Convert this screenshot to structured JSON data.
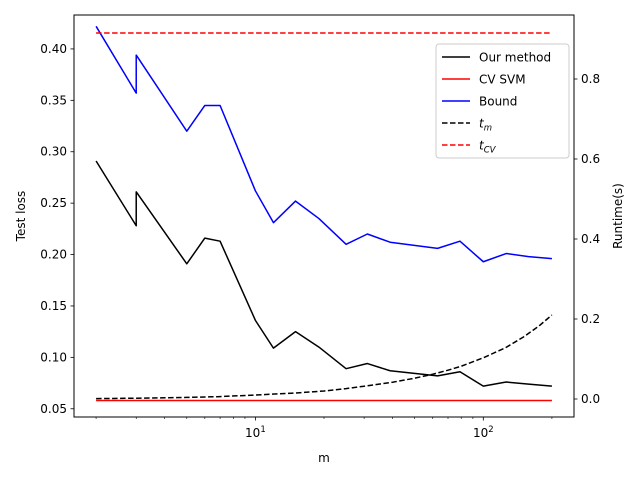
{
  "chart_data": {
    "type": "line",
    "x_scale": "log",
    "xlabel": "m",
    "ylabel_left": "Test loss",
    "ylabel_right": "Runtime(s)",
    "xlim": [
      1.6,
      250
    ],
    "ylim_left": [
      0.042,
      0.433
    ],
    "ylim_right": [
      -0.045,
      0.96
    ],
    "x_ticks": [
      {
        "value": 10,
        "base": "10",
        "exp": "1"
      },
      {
        "value": 100,
        "base": "10",
        "exp": "2"
      }
    ],
    "y_ticks_left": [
      0.05,
      0.1,
      0.15,
      0.2,
      0.25,
      0.3,
      0.35,
      0.4
    ],
    "y_tick_labels_left": [
      "0.05",
      "0.10",
      "0.15",
      "0.20",
      "0.25",
      "0.30",
      "0.35",
      "0.40"
    ],
    "y_ticks_right": [
      0.0,
      0.2,
      0.4,
      0.6,
      0.8
    ],
    "y_tick_labels_right": [
      "0.0",
      "0.2",
      "0.4",
      "0.6",
      "0.8"
    ],
    "grid": false,
    "legend_position": "top-right",
    "series": [
      {
        "name": "Our method",
        "axis": "left",
        "color": "#000000",
        "dash": "solid",
        "x": [
          2,
          3,
          3,
          5,
          6,
          7,
          10,
          12,
          15,
          19,
          25,
          31,
          39,
          63,
          79,
          100,
          126,
          158,
          200
        ],
        "y": [
          0.291,
          0.228,
          0.261,
          0.191,
          0.216,
          0.213,
          0.136,
          0.109,
          0.125,
          0.11,
          0.089,
          0.094,
          0.087,
          0.082,
          0.086,
          0.072,
          0.076,
          0.074,
          0.072
        ]
      },
      {
        "name": "CV SVM",
        "axis": "left",
        "color": "#ff0000",
        "dash": "solid",
        "x": [
          2,
          200
        ],
        "y": [
          0.058,
          0.058
        ]
      },
      {
        "name": "Bound",
        "axis": "left",
        "color": "#0000ff",
        "dash": "solid",
        "x": [
          2,
          3,
          3,
          5,
          6,
          7,
          10,
          12,
          15,
          19,
          25,
          31,
          39,
          63,
          79,
          100,
          126,
          158,
          200
        ],
        "y": [
          0.422,
          0.357,
          0.394,
          0.32,
          0.345,
          0.345,
          0.262,
          0.231,
          0.252,
          0.235,
          0.21,
          0.22,
          0.212,
          0.206,
          0.213,
          0.193,
          0.201,
          0.198,
          0.196
        ]
      },
      {
        "name": "t",
        "name_sub": "m",
        "axis": "right",
        "color": "#000000",
        "dash": "dashed",
        "x": [
          2,
          3,
          5,
          7,
          10,
          15,
          20,
          25,
          30,
          40,
          50,
          60,
          70,
          80,
          100,
          125,
          150,
          175,
          200
        ],
        "y": [
          0.001,
          0.002,
          0.004,
          0.006,
          0.01,
          0.015,
          0.02,
          0.026,
          0.032,
          0.042,
          0.052,
          0.062,
          0.072,
          0.082,
          0.103,
          0.128,
          0.155,
          0.182,
          0.21
        ]
      },
      {
        "name": "t",
        "name_sub": "CV",
        "axis": "right",
        "color": "#ff0000",
        "dash": "dashed",
        "x": [
          2,
          200
        ],
        "y": [
          0.915,
          0.915
        ]
      }
    ]
  }
}
